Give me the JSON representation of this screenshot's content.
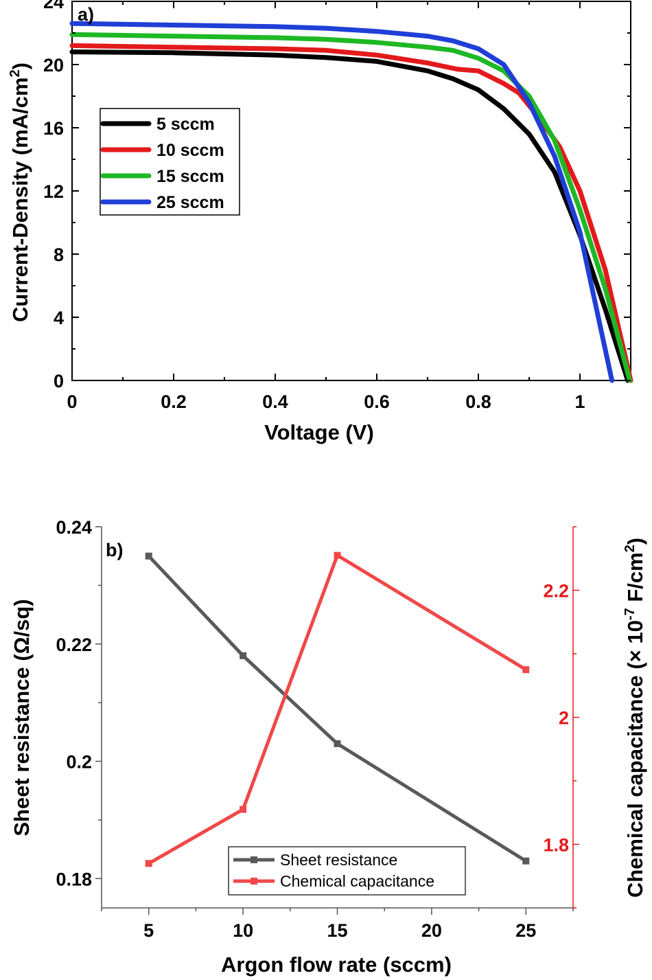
{
  "chart_data": [
    {
      "type": "line",
      "panel_label": "a)",
      "xlabel": "Voltage (V)",
      "ylabel": "Current-Density (mA/cm²)",
      "ylabel_main": "Current-Density (mA/cm",
      "ylabel_sup": "2",
      "ylabel_end": ")",
      "xlim": [
        0,
        1.1
      ],
      "ylim": [
        0,
        24
      ],
      "x_ticks": [
        "0",
        "0.2",
        "0.4",
        "0.6",
        "0.8",
        "1"
      ],
      "y_ticks": [
        "0",
        "4",
        "8",
        "12",
        "16",
        "20",
        "24"
      ],
      "legend": "upper-left",
      "series": [
        {
          "name": "5 sccm",
          "color": "#000000",
          "jsc": 20.8,
          "voc": 1.094,
          "x": [
            0,
            0.2,
            0.4,
            0.5,
            0.6,
            0.7,
            0.75,
            0.8,
            0.85,
            0.9,
            0.95,
            1.0,
            1.05,
            1.094
          ],
          "y": [
            20.8,
            20.75,
            20.6,
            20.45,
            20.2,
            19.6,
            19.1,
            18.4,
            17.2,
            15.6,
            13.2,
            9.2,
            4.5,
            0
          ]
        },
        {
          "name": "10 sccm",
          "color": "#e31a1c",
          "jsc": 21.2,
          "voc": 1.1,
          "x": [
            0,
            0.2,
            0.4,
            0.5,
            0.6,
            0.7,
            0.76,
            0.8,
            0.85,
            0.88,
            0.92,
            0.96,
            1.0,
            1.05,
            1.1
          ],
          "y": [
            21.2,
            21.1,
            21.0,
            20.9,
            20.6,
            20.1,
            19.7,
            19.6,
            18.8,
            18.2,
            16.6,
            14.8,
            12.0,
            7.0,
            0
          ]
        },
        {
          "name": "15 sccm",
          "color": "#1fb825",
          "jsc": 21.9,
          "voc": 1.098,
          "x": [
            0,
            0.2,
            0.4,
            0.5,
            0.6,
            0.7,
            0.75,
            0.8,
            0.85,
            0.9,
            0.95,
            1.0,
            1.05,
            1.098
          ],
          "y": [
            21.9,
            21.8,
            21.7,
            21.6,
            21.4,
            21.1,
            20.9,
            20.4,
            19.6,
            18.0,
            15.2,
            10.8,
            5.8,
            0
          ]
        },
        {
          "name": "25 sccm",
          "color": "#1f3fd6",
          "jsc": 22.6,
          "voc": 1.063,
          "x": [
            0,
            0.2,
            0.4,
            0.5,
            0.6,
            0.7,
            0.75,
            0.8,
            0.85,
            0.9,
            0.95,
            1.0,
            1.063
          ],
          "y": [
            22.6,
            22.5,
            22.4,
            22.3,
            22.1,
            21.8,
            21.5,
            21.0,
            20.0,
            17.6,
            14.2,
            9.4,
            0
          ]
        }
      ]
    },
    {
      "type": "line",
      "panel_label": "b)",
      "xlabel": "Argon flow rate (sccm)",
      "ylabel": "Sheet resistance (Ω/sq)",
      "ylabel_right": "Chemical capacitance (× 10⁻⁷ F/cm²)",
      "ylabel_right_main": "Chemical capacitance (× 10",
      "ylabel_right_sup1": "-7",
      "ylabel_right_mid": " F/cm",
      "ylabel_right_sup2": "2",
      "ylabel_right_end": ")",
      "xlim": [
        2.5,
        27.5
      ],
      "ylim_left": [
        0.175,
        0.24
      ],
      "ylim_right": [
        1.7,
        2.3
      ],
      "x_ticks": [
        "5",
        "10",
        "15",
        "20",
        "25"
      ],
      "y_ticks_left": [
        "0.18",
        "0.2",
        "0.22",
        "0.24"
      ],
      "y_ticks_right": [
        "1.8",
        "2",
        "2.2"
      ],
      "legend": "lower-center",
      "series": [
        {
          "name": "Sheet resistance",
          "axis": "left",
          "color": "#5a5a5a",
          "x": [
            5,
            10,
            15,
            25
          ],
          "y": [
            0.235,
            0.218,
            0.203,
            0.183
          ]
        },
        {
          "name": "Chemical capacitance",
          "axis": "right",
          "color": "#f04848",
          "x": [
            5,
            10,
            15,
            25
          ],
          "y": [
            1.77,
            1.855,
            2.255,
            2.075
          ]
        }
      ]
    }
  ]
}
